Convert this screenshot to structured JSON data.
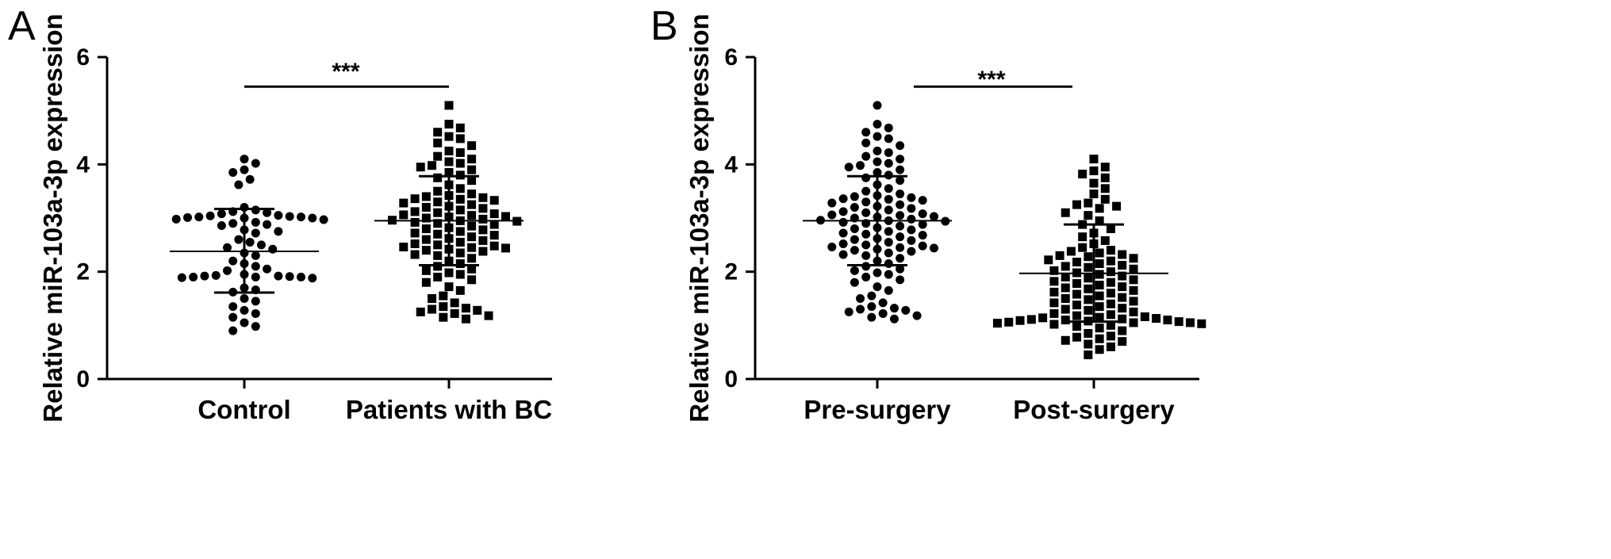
{
  "chart_data": [
    {
      "type": "scatter",
      "panel_label": "A",
      "ylabel": "Relative miR-103a-3p expression",
      "ylim": [
        0,
        6
      ],
      "yticks": [
        0,
        2,
        4,
        6
      ],
      "categories": [
        "Control",
        "Patients with BC"
      ],
      "series": [
        {
          "marker": "circle",
          "mean": 2.38,
          "sd_low": 1.61,
          "sd_high": 3.17,
          "values": [
            4.1,
            4.02,
            3.9,
            3.85,
            3.72,
            3.62,
            3.2,
            3.15,
            3.12,
            3.1,
            3.08,
            3.05,
            3.04,
            3.03,
            3.02,
            3.02,
            3.01,
            3.0,
            3.0,
            2.98,
            2.97,
            2.92,
            2.9,
            2.88,
            2.86,
            2.78,
            2.75,
            2.72,
            2.6,
            2.55,
            2.5,
            2.45,
            2.42,
            2.35,
            2.3,
            2.2,
            2.15,
            2.1,
            2.05,
            2.02,
            1.95,
            1.93,
            1.92,
            1.92,
            1.91,
            1.9,
            1.9,
            1.9,
            1.89,
            1.88,
            1.7,
            1.66,
            1.62,
            1.5,
            1.45,
            1.35,
            1.28,
            1.22,
            1.15,
            1.05,
            0.98,
            0.9
          ]
        },
        {
          "marker": "square",
          "mean": 2.95,
          "sd_low": 2.12,
          "sd_high": 3.78,
          "values": [
            5.1,
            4.75,
            4.68,
            4.6,
            4.52,
            4.48,
            4.4,
            4.35,
            4.25,
            4.22,
            4.15,
            4.1,
            4.05,
            4.02,
            3.98,
            3.95,
            3.9,
            3.85,
            3.8,
            3.75,
            3.7,
            3.62,
            3.55,
            3.5,
            3.45,
            3.42,
            3.4,
            3.38,
            3.36,
            3.35,
            3.33,
            3.3,
            3.28,
            3.25,
            3.22,
            3.2,
            3.18,
            3.15,
            3.12,
            3.1,
            3.08,
            3.06,
            3.05,
            3.03,
            3.02,
            3.0,
            2.98,
            2.96,
            2.95,
            2.94,
            2.92,
            2.9,
            2.88,
            2.85,
            2.82,
            2.8,
            2.78,
            2.75,
            2.72,
            2.7,
            2.68,
            2.65,
            2.62,
            2.6,
            2.58,
            2.55,
            2.52,
            2.5,
            2.48,
            2.46,
            2.45,
            2.44,
            2.42,
            2.4,
            2.38,
            2.35,
            2.32,
            2.3,
            2.25,
            2.2,
            2.15,
            2.1,
            2.05,
            2.02,
            1.98,
            1.95,
            1.9,
            1.85,
            1.8,
            1.72,
            1.65,
            1.55,
            1.5,
            1.42,
            1.35,
            1.32,
            1.3,
            1.28,
            1.25,
            1.22,
            1.18,
            1.15,
            1.12
          ]
        }
      ],
      "significance": {
        "text": "***",
        "y": 5.45
      }
    },
    {
      "type": "scatter",
      "panel_label": "B",
      "ylabel": "Relative miR-103a-3p expression",
      "ylim": [
        0,
        6
      ],
      "yticks": [
        0,
        2,
        4,
        6
      ],
      "categories": [
        "Pre-surgery",
        "Post-surgery"
      ],
      "series": [
        {
          "marker": "circle",
          "mean": 2.95,
          "sd_low": 2.12,
          "sd_high": 3.78,
          "values": [
            5.1,
            4.75,
            4.68,
            4.6,
            4.52,
            4.48,
            4.4,
            4.35,
            4.25,
            4.22,
            4.15,
            4.1,
            4.05,
            4.02,
            3.98,
            3.95,
            3.9,
            3.85,
            3.8,
            3.75,
            3.7,
            3.62,
            3.55,
            3.5,
            3.45,
            3.42,
            3.4,
            3.38,
            3.36,
            3.35,
            3.33,
            3.3,
            3.28,
            3.25,
            3.22,
            3.2,
            3.18,
            3.15,
            3.12,
            3.1,
            3.08,
            3.06,
            3.05,
            3.03,
            3.02,
            3.0,
            2.98,
            2.96,
            2.95,
            2.94,
            2.92,
            2.9,
            2.88,
            2.85,
            2.82,
            2.8,
            2.78,
            2.75,
            2.72,
            2.7,
            2.68,
            2.65,
            2.62,
            2.6,
            2.58,
            2.55,
            2.52,
            2.5,
            2.48,
            2.46,
            2.45,
            2.44,
            2.42,
            2.4,
            2.38,
            2.35,
            2.32,
            2.3,
            2.25,
            2.2,
            2.15,
            2.1,
            2.05,
            2.02,
            1.98,
            1.95,
            1.9,
            1.85,
            1.8,
            1.72,
            1.65,
            1.55,
            1.5,
            1.42,
            1.35,
            1.32,
            1.3,
            1.28,
            1.25,
            1.22,
            1.18,
            1.15,
            1.12
          ]
        },
        {
          "marker": "square",
          "mean": 1.97,
          "sd_low": 1.07,
          "sd_high": 2.88,
          "values": [
            4.1,
            3.95,
            3.88,
            3.82,
            3.75,
            3.65,
            3.55,
            3.45,
            3.35,
            3.28,
            3.25,
            3.22,
            3.18,
            3.1,
            3.05,
            2.95,
            2.88,
            2.8,
            2.72,
            2.65,
            2.58,
            2.52,
            2.45,
            2.4,
            2.38,
            2.35,
            2.32,
            2.3,
            2.28,
            2.25,
            2.22,
            2.2,
            2.18,
            2.15,
            2.12,
            2.1,
            2.08,
            2.05,
            2.02,
            2.0,
            1.98,
            1.95,
            1.92,
            1.9,
            1.88,
            1.85,
            1.82,
            1.8,
            1.78,
            1.75,
            1.72,
            1.7,
            1.68,
            1.65,
            1.62,
            1.6,
            1.58,
            1.55,
            1.52,
            1.5,
            1.48,
            1.45,
            1.42,
            1.4,
            1.38,
            1.35,
            1.32,
            1.3,
            1.28,
            1.25,
            1.22,
            1.2,
            1.18,
            1.16,
            1.15,
            1.14,
            1.13,
            1.12,
            1.11,
            1.1,
            1.1,
            1.09,
            1.08,
            1.07,
            1.06,
            1.05,
            1.05,
            1.04,
            1.03,
            1.02,
            1.0,
            0.98,
            0.95,
            0.9,
            0.85,
            0.8,
            0.78,
            0.75,
            0.72,
            0.7,
            0.65,
            0.6,
            0.55,
            0.45
          ]
        }
      ],
      "significance": {
        "text": "***",
        "y": 5.45
      }
    }
  ]
}
